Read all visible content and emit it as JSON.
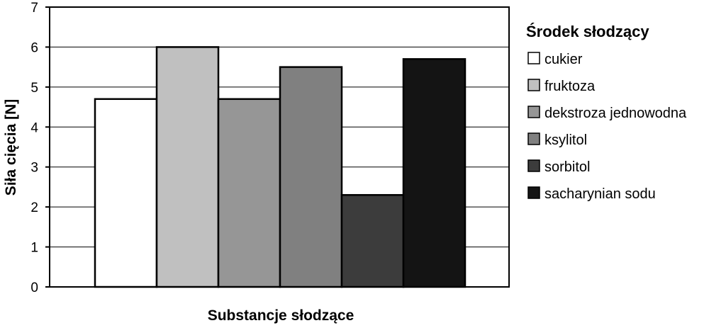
{
  "chart_data": {
    "type": "bar",
    "title": "",
    "xlabel": "Substancje słodzące",
    "ylabel": "Siła cięcia [N]",
    "ylim": [
      0,
      7
    ],
    "yticks": [
      0,
      1,
      2,
      3,
      4,
      5,
      6,
      7
    ],
    "grid": true,
    "legend_title": "Środek słodzący",
    "legend_position": "right",
    "categories": [
      "cukier",
      "fruktoza",
      "dekstroza jednowodna",
      "ksylitol",
      "sorbitol",
      "sacharynian sodu"
    ],
    "values": [
      4.7,
      6.0,
      4.7,
      5.5,
      2.3,
      5.7
    ],
    "colors": [
      "#ffffff",
      "#c0c0c0",
      "#969696",
      "#808080",
      "#3c3c3c",
      "#141414"
    ]
  }
}
